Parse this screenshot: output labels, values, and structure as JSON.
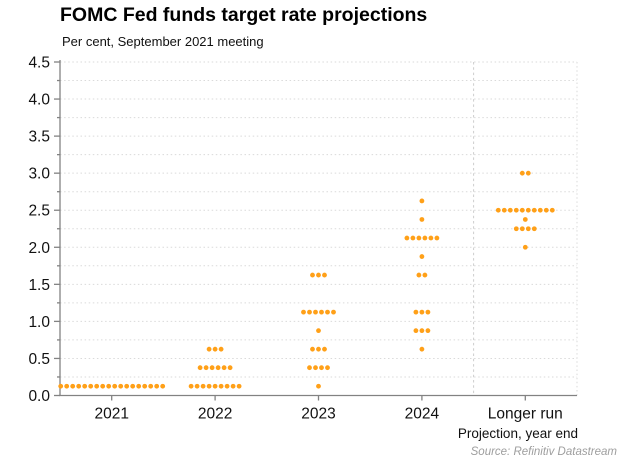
{
  "title": "FOMC Fed funds target rate projections",
  "subtitle": "Per cent, September 2021 meeting",
  "x_axis_title": "Projection, year end",
  "source": "Source: Refinitiv Datastream",
  "colors": {
    "dot": "#FFA018",
    "axis": "#828282",
    "grid": "#DADADA",
    "title_text": "#000000",
    "source_text": "#9E9E9E"
  },
  "chart_data": {
    "type": "scatter",
    "subtype": "dot-plot",
    "title": "FOMC Fed funds target rate projections",
    "subtitle": "Per cent, September 2021 meeting",
    "xlabel": "Projection, year end",
    "ylabel": "Per cent",
    "ylim": [
      0,
      4.5
    ],
    "ytick_step": 0.5,
    "grid_step": 0.25,
    "grid": "dotted horizontal every 0.25",
    "legend": "none",
    "ytick_labels": [
      "0.0",
      "0.5",
      "1.0",
      "1.5",
      "2.0",
      "2.5",
      "3.0",
      "3.5",
      "4.0",
      "4.5"
    ],
    "categories": [
      "2021",
      "2022",
      "2023",
      "2024",
      "Longer run"
    ],
    "series": [
      {
        "name": "2021",
        "points": [
          {
            "rate": 0.125,
            "count": 18
          }
        ]
      },
      {
        "name": "2022",
        "points": [
          {
            "rate": 0.125,
            "count": 9
          },
          {
            "rate": 0.375,
            "count": 6
          },
          {
            "rate": 0.625,
            "count": 3
          }
        ]
      },
      {
        "name": "2023",
        "points": [
          {
            "rate": 0.125,
            "count": 1
          },
          {
            "rate": 0.375,
            "count": 4
          },
          {
            "rate": 0.625,
            "count": 3
          },
          {
            "rate": 0.875,
            "count": 1
          },
          {
            "rate": 1.125,
            "count": 6
          },
          {
            "rate": 1.625,
            "count": 3
          }
        ]
      },
      {
        "name": "2024",
        "points": [
          {
            "rate": 0.625,
            "count": 1
          },
          {
            "rate": 0.875,
            "count": 3
          },
          {
            "rate": 1.125,
            "count": 3
          },
          {
            "rate": 1.625,
            "count": 2
          },
          {
            "rate": 1.875,
            "count": 1
          },
          {
            "rate": 2.125,
            "count": 6
          },
          {
            "rate": 2.375,
            "count": 1
          },
          {
            "rate": 2.625,
            "count": 1
          }
        ]
      },
      {
        "name": "Longer run",
        "points": [
          {
            "rate": 2.0,
            "count": 1
          },
          {
            "rate": 2.25,
            "count": 4
          },
          {
            "rate": 2.375,
            "count": 1
          },
          {
            "rate": 2.5,
            "count": 10
          },
          {
            "rate": 3.0,
            "count": 2
          }
        ]
      }
    ]
  }
}
